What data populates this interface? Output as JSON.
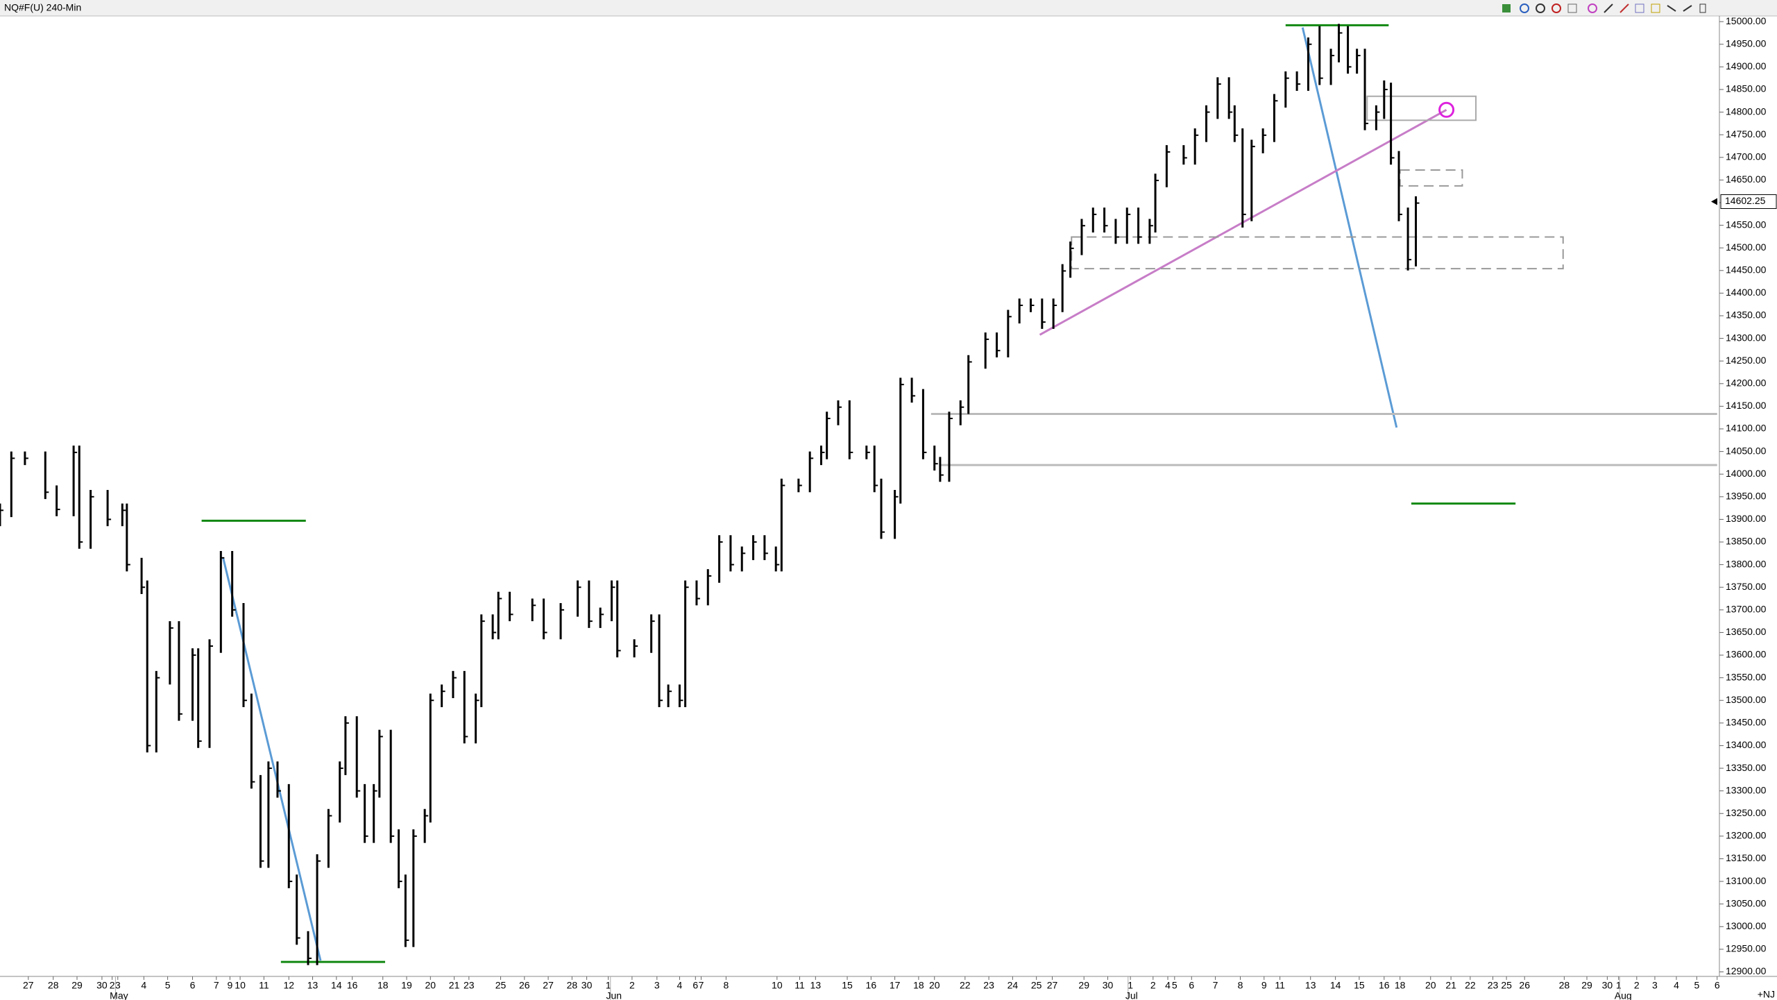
{
  "chart_data": {
    "type": "ohlc",
    "title": "NQ#F(U) 240-Min",
    "corner_label": "+NJ",
    "color": "#000000",
    "grid": false,
    "xlim": [
      0,
      75.9
    ],
    "ylim": [
      12890,
      15012.5
    ],
    "x": [
      0,
      0.5,
      1.1,
      2.0,
      2.5,
      3.25,
      3.5,
      4.0,
      4.75,
      5.4,
      5.6,
      6.25,
      6.5,
      6.9,
      7.5,
      7.9,
      8.5,
      8.75,
      9.25,
      9.75,
      10.25,
      10.75,
      11.1,
      11.5,
      11.85,
      12.25,
      12.75,
      13.1,
      13.6,
      14.0,
      14.5,
      15.0,
      15.25,
      15.75,
      16.1,
      16.5,
      16.75,
      17.25,
      17.6,
      17.9,
      18.25,
      18.75,
      19.0,
      19.5,
      20.0,
      20.5,
      21.0,
      21.25,
      21.75,
      22.0,
      22.5,
      23.5,
      24.0,
      24.75,
      25.5,
      26.0,
      26.5,
      27.0,
      27.25,
      28.0,
      28.75,
      29.1,
      29.5,
      30.0,
      30.25,
      30.75,
      31.25,
      31.75,
      32.25,
      32.75,
      33.25,
      33.75,
      34.25,
      34.5,
      35.25,
      35.75,
      36.25,
      36.5,
      37.0,
      37.5,
      38.25,
      38.6,
      38.9,
      39.5,
      39.75,
      40.25,
      40.75,
      41.25,
      41.5,
      41.9,
      42.4,
      42.75,
      43.5,
      44.0,
      44.5,
      45.0,
      45.5,
      46.0,
      46.5,
      46.9,
      47.25,
      47.75,
      48.25,
      48.75,
      49.25,
      49.75,
      50.25,
      50.75,
      51.0,
      51.5,
      52.25,
      52.75,
      53.25,
      53.75,
      54.25,
      54.5,
      54.85,
      55.25,
      55.75,
      56.25,
      56.75,
      57.25,
      57.75,
      58.25,
      58.75,
      59.1,
      59.5,
      59.9,
      60.25,
      60.75,
      61.1,
      61.4,
      61.75,
      62.15,
      62.5
    ],
    "high": [
      13935,
      14050,
      14050,
      14050,
      13975,
      14063,
      14063,
      13965,
      13965,
      13935,
      13935,
      13815,
      13765,
      13565,
      13675,
      13675,
      13615,
      13615,
      13635,
      13830,
      13830,
      13715,
      13515,
      13335,
      13365,
      13365,
      13315,
      13115,
      12990,
      13160,
      13260,
      13365,
      13465,
      13465,
      13315,
      13315,
      13435,
      13435,
      13215,
      13115,
      13215,
      13260,
      13515,
      13535,
      13565,
      13565,
      13515,
      13690,
      13690,
      13740,
      13740,
      13725,
      13725,
      13715,
      13765,
      13765,
      13705,
      13765,
      13765,
      13635,
      13690,
      13690,
      13535,
      13535,
      13765,
      13765,
      13790,
      13865,
      13865,
      13840,
      13865,
      13865,
      13840,
      13990,
      13990,
      14050,
      14063,
      14138,
      14163,
      14163,
      14063,
      14063,
      13990,
      13965,
      14213,
      14213,
      14188,
      14063,
      14038,
      14138,
      14163,
      14263,
      14313,
      14313,
      14363,
      14388,
      14388,
      14388,
      14388,
      14464,
      14514,
      14564,
      14589,
      14589,
      14564,
      14589,
      14589,
      14564,
      14664,
      14727,
      14727,
      14764,
      14815,
      14877,
      14877,
      14815,
      14764,
      14739,
      14764,
      14840,
      14890,
      14890,
      14965,
      14990,
      14940,
      14995,
      14990,
      14940,
      14940,
      14815,
      14870,
      14865,
      14714,
      14589,
      14614
    ],
    "low": [
      13885,
      13905,
      14020,
      13945,
      13907,
      13907,
      13835,
      13835,
      13885,
      13885,
      13785,
      13735,
      13385,
      13385,
      13535,
      13455,
      13455,
      13395,
      13395,
      13605,
      13685,
      13485,
      13305,
      13130,
      13130,
      13285,
      13085,
      12960,
      12915,
      12915,
      13130,
      13230,
      13335,
      13285,
      13185,
      13185,
      13285,
      13185,
      13085,
      12955,
      12955,
      13185,
      13230,
      13485,
      13505,
      13405,
      13405,
      13485,
      13635,
      13635,
      13675,
      13675,
      13635,
      13635,
      13685,
      13660,
      13660,
      13675,
      13595,
      13595,
      13605,
      13485,
      13485,
      13485,
      13485,
      13710,
      13710,
      13760,
      13785,
      13785,
      13810,
      13810,
      13785,
      13785,
      13960,
      13960,
      14020,
      14033,
      14108,
      14033,
      14033,
      13960,
      13857,
      13857,
      13935,
      14158,
      14033,
      14008,
      13983,
      13983,
      14108,
      14133,
      14233,
      14258,
      14258,
      14333,
      14358,
      14321,
      14321,
      14358,
      14434,
      14484,
      14534,
      14534,
      14509,
      14509,
      14509,
      14509,
      14534,
      14634,
      14684,
      14684,
      14734,
      14785,
      14785,
      14734,
      14545,
      14559,
      14709,
      14734,
      14810,
      14847,
      14847,
      14860,
      14860,
      14910,
      14885,
      14885,
      14760,
      14760,
      14785,
      14684,
      14559,
      14450,
      14459
    ],
    "close": [
      13920,
      14035,
      14035,
      13960,
      13922,
      14048,
      13850,
      13950,
      13900,
      13920,
      13800,
      13750,
      13400,
      13550,
      13660,
      13470,
      13600,
      13410,
      13620,
      13815,
      13700,
      13500,
      13320,
      13145,
      13350,
      13300,
      13100,
      12975,
      12930,
      13145,
      13245,
      13350,
      13450,
      13300,
      13200,
      13300,
      13420,
      13200,
      13100,
      12970,
      13200,
      13245,
      13500,
      13520,
      13550,
      13420,
      13500,
      13675,
      13650,
      13725,
      13690,
      13710,
      13650,
      13700,
      13750,
      13675,
      13690,
      13750,
      13610,
      13620,
      13675,
      13500,
      13520,
      13500,
      13750,
      13725,
      13775,
      13850,
      13800,
      13825,
      13850,
      13825,
      13800,
      13975,
      13975,
      14035,
      14048,
      14123,
      14148,
      14048,
      14048,
      13975,
      13872,
      13950,
      14198,
      14173,
      14048,
      14023,
      13998,
      14123,
      14148,
      14248,
      14298,
      14273,
      14348,
      14373,
      14373,
      14336,
      14373,
      14449,
      14499,
      14549,
      14574,
      14549,
      14524,
      14574,
      14524,
      14549,
      14649,
      14712,
      14699,
      14749,
      14800,
      14862,
      14800,
      14749,
      14574,
      14724,
      14749,
      14825,
      14875,
      14862,
      14950,
      14875,
      14925,
      14975,
      14900,
      14925,
      14775,
      14800,
      14850,
      14699,
      14574,
      14474,
      14599
    ],
    "last_price": 14602.25,
    "yticks": [
      {
        "value": 12900,
        "label": "12900.00"
      },
      {
        "value": 12950,
        "label": "12950.00"
      },
      {
        "value": 13000,
        "label": "13000.00"
      },
      {
        "value": 13050,
        "label": "13050.00"
      },
      {
        "value": 13100,
        "label": "13100.00"
      },
      {
        "value": 13150,
        "label": "13150.00"
      },
      {
        "value": 13200,
        "label": "13200.00"
      },
      {
        "value": 13250,
        "label": "13250.00"
      },
      {
        "value": 13300,
        "label": "13300.00"
      },
      {
        "value": 13350,
        "label": "13350.00"
      },
      {
        "value": 13400,
        "label": "13400.00"
      },
      {
        "value": 13450,
        "label": "13450.00"
      },
      {
        "value": 13500,
        "label": "13500.00"
      },
      {
        "value": 13550,
        "label": "13550.00"
      },
      {
        "value": 13600,
        "label": "13600.00"
      },
      {
        "value": 13650,
        "label": "13650.00"
      },
      {
        "value": 13700,
        "label": "13700.00"
      },
      {
        "value": 13750,
        "label": "13750.00"
      },
      {
        "value": 13800,
        "label": "13800.00"
      },
      {
        "value": 13850,
        "label": "13850.00"
      },
      {
        "value": 13900,
        "label": "13900.00"
      },
      {
        "value": 13950,
        "label": "13950.00"
      },
      {
        "value": 14000,
        "label": "14000.00"
      },
      {
        "value": 14050,
        "label": "14050.00"
      },
      {
        "value": 14100,
        "label": "14100.00"
      },
      {
        "value": 14150,
        "label": "14150.00"
      },
      {
        "value": 14200,
        "label": "14200.00"
      },
      {
        "value": 14250,
        "label": "14250.00"
      },
      {
        "value": 14300,
        "label": "14300.00"
      },
      {
        "value": 14350,
        "label": "14350.00"
      },
      {
        "value": 14400,
        "label": "14400.00"
      },
      {
        "value": 14450,
        "label": "14450.00"
      },
      {
        "value": 14500,
        "label": "14500.00"
      },
      {
        "value": 14550,
        "label": "14550.00"
      },
      {
        "value": 14600,
        "label": "14600.00"
      },
      {
        "value": 14650,
        "label": "14650.00"
      },
      {
        "value": 14700,
        "label": "14700.00"
      },
      {
        "value": 14750,
        "label": "14750.00"
      },
      {
        "value": 14800,
        "label": "14800.00"
      },
      {
        "value": 14850,
        "label": "14850.00"
      },
      {
        "value": 14900,
        "label": "14900.00"
      },
      {
        "value": 14950,
        "label": "14950.00"
      },
      {
        "value": 15000,
        "label": "15000.00"
      }
    ],
    "xticks": [
      {
        "value": 1.25,
        "label": "27"
      },
      {
        "value": 2.35,
        "label": "28"
      },
      {
        "value": 3.4,
        "label": "29"
      },
      {
        "value": 4.5,
        "label": "30"
      },
      {
        "value": 4.95,
        "label": "2"
      },
      {
        "value": 5.2,
        "label": "3"
      },
      {
        "value": 6.35,
        "label": "4"
      },
      {
        "value": 7.4,
        "label": "5"
      },
      {
        "value": 8.5,
        "label": "6"
      },
      {
        "value": 9.55,
        "label": "7"
      },
      {
        "value": 10.15,
        "label": "9"
      },
      {
        "value": 10.6,
        "label": "10"
      },
      {
        "value": 11.65,
        "label": "11"
      },
      {
        "value": 12.75,
        "label": "12"
      },
      {
        "value": 13.8,
        "label": "13"
      },
      {
        "value": 14.85,
        "label": "14"
      },
      {
        "value": 15.55,
        "label": "16"
      },
      {
        "value": 16.9,
        "label": "18"
      },
      {
        "value": 17.95,
        "label": "19"
      },
      {
        "value": 19.0,
        "label": "20"
      },
      {
        "value": 20.05,
        "label": "21"
      },
      {
        "value": 20.7,
        "label": "23"
      },
      {
        "value": 22.1,
        "label": "25"
      },
      {
        "value": 23.15,
        "label": "26"
      },
      {
        "value": 24.2,
        "label": "27"
      },
      {
        "value": 25.25,
        "label": "28"
      },
      {
        "value": 25.9,
        "label": "30"
      },
      {
        "value": 26.85,
        "label": "1"
      },
      {
        "value": 27.9,
        "label": "2"
      },
      {
        "value": 29.0,
        "label": "3"
      },
      {
        "value": 30.0,
        "label": "4"
      },
      {
        "value": 30.7,
        "label": "6"
      },
      {
        "value": 30.95,
        "label": "7"
      },
      {
        "value": 32.05,
        "label": "8"
      },
      {
        "value": 34.3,
        "label": "10"
      },
      {
        "value": 35.3,
        "label": "11"
      },
      {
        "value": 36.0,
        "label": "13"
      },
      {
        "value": 37.4,
        "label": "15"
      },
      {
        "value": 38.45,
        "label": "16"
      },
      {
        "value": 39.5,
        "label": "17"
      },
      {
        "value": 40.55,
        "label": "18"
      },
      {
        "value": 41.25,
        "label": "20"
      },
      {
        "value": 42.6,
        "label": "22"
      },
      {
        "value": 43.65,
        "label": "23"
      },
      {
        "value": 44.7,
        "label": "24"
      },
      {
        "value": 45.75,
        "label": "25"
      },
      {
        "value": 46.45,
        "label": "27"
      },
      {
        "value": 47.85,
        "label": "29"
      },
      {
        "value": 48.9,
        "label": "30"
      },
      {
        "value": 49.9,
        "label": "1"
      },
      {
        "value": 50.9,
        "label": "2"
      },
      {
        "value": 51.55,
        "label": "4"
      },
      {
        "value": 51.85,
        "label": "5"
      },
      {
        "value": 52.6,
        "label": "6"
      },
      {
        "value": 53.65,
        "label": "7"
      },
      {
        "value": 54.75,
        "label": "8"
      },
      {
        "value": 55.8,
        "label": "9"
      },
      {
        "value": 56.5,
        "label": "11"
      },
      {
        "value": 57.85,
        "label": "13"
      },
      {
        "value": 58.95,
        "label": "14"
      },
      {
        "value": 60.0,
        "label": "15"
      },
      {
        "value": 61.1,
        "label": "16"
      },
      {
        "value": 61.8,
        "label": "18"
      },
      {
        "value": 63.15,
        "label": "20"
      },
      {
        "value": 64.05,
        "label": "21"
      },
      {
        "value": 64.9,
        "label": "22"
      },
      {
        "value": 65.9,
        "label": "23"
      },
      {
        "value": 66.5,
        "label": "25"
      },
      {
        "value": 67.3,
        "label": "26"
      },
      {
        "value": 69.05,
        "label": "28"
      },
      {
        "value": 70.05,
        "label": "29"
      },
      {
        "value": 70.95,
        "label": "30"
      },
      {
        "value": 71.45,
        "label": "1"
      },
      {
        "value": 72.25,
        "label": "2"
      },
      {
        "value": 73.05,
        "label": "3"
      },
      {
        "value": 74.0,
        "label": "4"
      },
      {
        "value": 74.9,
        "label": "5"
      },
      {
        "value": 75.8,
        "label": "6"
      }
    ],
    "month_ticks": [
      {
        "value": 5.25,
        "label": "May"
      },
      {
        "value": 27.1,
        "label": "Jun"
      },
      {
        "value": 49.95,
        "label": "Jul"
      },
      {
        "value": 71.65,
        "label": "Aug"
      }
    ],
    "drawings": [
      {
        "shape": "line",
        "color": "#118811",
        "x": [
          8.9,
          13.5
        ],
        "y": [
          13897,
          13897
        ]
      },
      {
        "shape": "line",
        "color": "#5b9bd5",
        "x": [
          9.85,
          14.15
        ],
        "y": [
          13815,
          12925
        ]
      },
      {
        "shape": "line",
        "color": "#118811",
        "x": [
          12.4,
          17.0
        ],
        "y": [
          12922,
          12922
        ]
      },
      {
        "shape": "line",
        "color": "#118811",
        "x": [
          56.75,
          61.3
        ],
        "y": [
          14992,
          14992
        ]
      },
      {
        "shape": "line",
        "color": "#5b9bd5",
        "x": [
          57.5,
          61.65
        ],
        "y": [
          14987,
          14103
        ]
      },
      {
        "shape": "line",
        "color": "#c77dc7",
        "x": [
          45.9,
          63.85
        ],
        "y": [
          14308,
          14805
        ]
      },
      {
        "shape": "line",
        "color": "#bbbbbb",
        "x": [
          41.1,
          75.8
        ],
        "y": [
          14133,
          14133
        ]
      },
      {
        "shape": "line",
        "color": "#bbbbbb",
        "x": [
          41.5,
          75.8
        ],
        "y": [
          14020,
          14020
        ]
      },
      {
        "shape": "dashed-rect",
        "color": "#999999",
        "x": [
          47.3,
          69.0
        ],
        "y": [
          14524,
          14454
        ]
      },
      {
        "shape": "rect",
        "color": "#aaaaaa",
        "x": [
          60.35,
          65.15
        ],
        "y": [
          14835,
          14782
        ]
      },
      {
        "shape": "dashed-rect",
        "color": "#999999",
        "x": [
          61.8,
          64.55
        ],
        "y": [
          14672,
          14637
        ]
      },
      {
        "shape": "line",
        "color": "#118811",
        "x": [
          62.3,
          66.9
        ],
        "y": [
          13935,
          13935
        ]
      },
      {
        "shape": "circle",
        "color": "#dd22dd",
        "x": [
          63.85
        ],
        "y": [
          14805
        ]
      }
    ]
  }
}
